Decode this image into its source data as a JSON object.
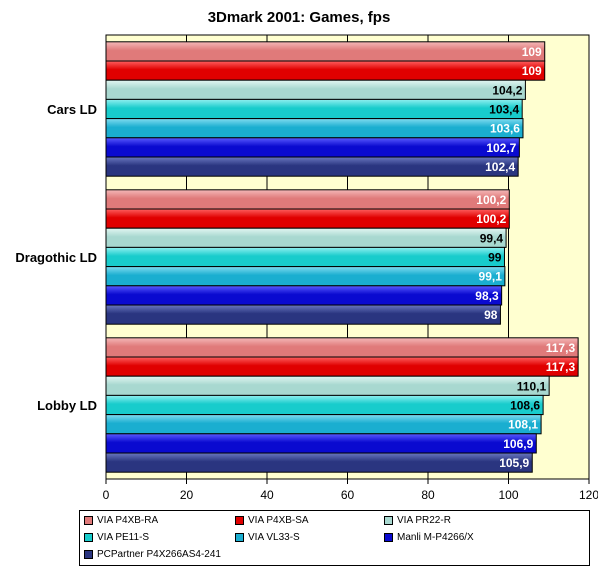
{
  "chart_data": {
    "type": "bar",
    "orientation": "horizontal",
    "title": "3Dmark 2001: Games, fps",
    "xlabel": "",
    "ylabel": "",
    "xlim": [
      0,
      120
    ],
    "xticks": [
      "0",
      "20",
      "40",
      "60",
      "80",
      "100",
      "120"
    ],
    "grid": true,
    "legend_position": "bottom",
    "categories": [
      "Cars LD",
      "Dragothic LD",
      "Lobby LD"
    ],
    "series": [
      {
        "name": "VIA P4XB-RA",
        "color": "#e07a7a",
        "light": "#f4b8b8",
        "values": [
          109,
          100.2,
          117.3
        ],
        "labels": [
          "109",
          "100,2",
          "117,3"
        ]
      },
      {
        "name": "VIA P4XB-SA",
        "color": "#e00000",
        "light": "#ff6060",
        "values": [
          109,
          100.2,
          117.3
        ],
        "labels": [
          "109",
          "100,2",
          "117,3"
        ]
      },
      {
        "name": "VIA PR22-R",
        "color": "#a8d8d0",
        "light": "#e2f6f2",
        "values": [
          104.2,
          99.4,
          110.1
        ],
        "labels": [
          "104,2",
          "99,4",
          "110,1"
        ]
      },
      {
        "name": "VIA PE11-S",
        "color": "#18cccc",
        "light": "#90f0f0",
        "values": [
          103.4,
          99,
          108.6
        ],
        "labels": [
          "103,4",
          "99",
          "108,6"
        ]
      },
      {
        "name": "VIA VL33-S",
        "color": "#1aaed0",
        "light": "#80dcf0",
        "values": [
          103.6,
          99.1,
          108.1
        ],
        "labels": [
          "103,6",
          "99,1",
          "108,1"
        ]
      },
      {
        "name": "Manli M-P4266/X",
        "color": "#0a0ad0",
        "light": "#5a5aff",
        "values": [
          102.7,
          98.3,
          106.9
        ],
        "labels": [
          "102,7",
          "98,3",
          "106,9"
        ]
      },
      {
        "name": "PCPartner P4X266AS4-241",
        "color": "#2a3580",
        "light": "#6a78c0",
        "values": [
          102.4,
          98,
          105.9
        ],
        "labels": [
          "102,4",
          "98",
          "105,9"
        ]
      }
    ],
    "label_text_colors": [
      "#ffffff",
      "#ffffff",
      "#000000",
      "#000000",
      "#ffffff",
      "#ffffff",
      "#ffffff"
    ]
  }
}
